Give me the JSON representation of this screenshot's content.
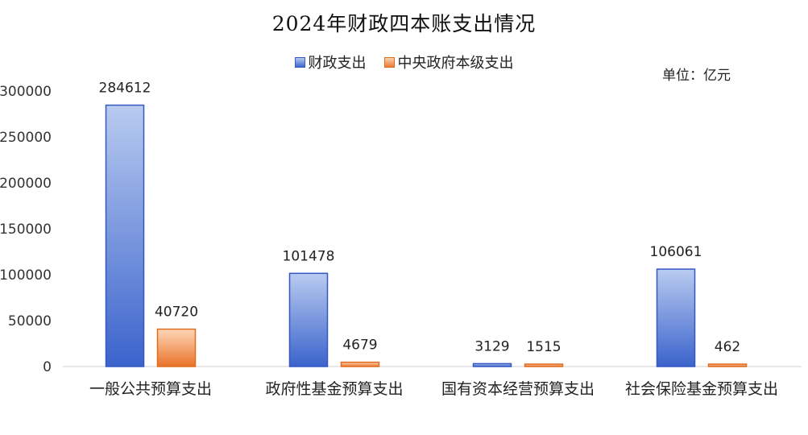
{
  "chart_data": {
    "type": "bar",
    "title": "2024年财政四本账支出情况",
    "unit_label": "单位：亿元",
    "categories": [
      "一般公共预算支出",
      "政府性基金预算支出",
      "国有资本经营预算支出",
      "社会保险基金预算支出"
    ],
    "series": [
      {
        "name": "财政支出",
        "values": [
          284612,
          101478,
          3129,
          106061
        ],
        "color": "#4472c4"
      },
      {
        "name": "中央政府本级支出",
        "values": [
          40720,
          4679,
          1515,
          462
        ],
        "color": "#ed7d31"
      }
    ],
    "y_ticks": [
      0,
      50000,
      100000,
      150000,
      200000,
      250000,
      300000
    ],
    "ylim": [
      0,
      300000
    ],
    "grid": false,
    "legend_position": "top"
  }
}
